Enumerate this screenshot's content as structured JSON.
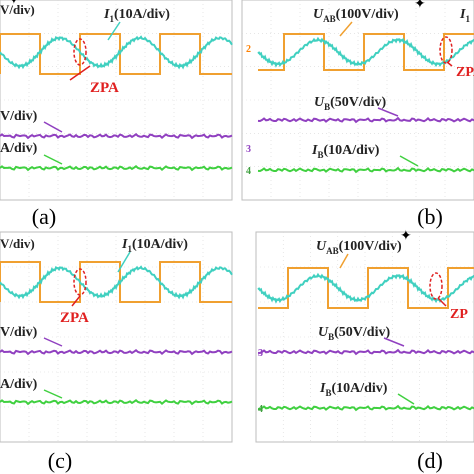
{
  "figure": {
    "panels": [
      {
        "caption": "(a)",
        "labels": {
          "top_left": "V/div)",
          "current": "I",
          "current_sub": "1",
          "current_scale": "(10A/div)",
          "zpa": "ZPA",
          "mid": "V/div)",
          "bottom": "A/div)"
        }
      },
      {
        "caption": "(b)",
        "labels": {
          "voltage": "U",
          "voltage_sub": "AB",
          "voltage_scale": "(100V/div)",
          "current": "I",
          "current_sub": "1",
          "zpa": "ZPA",
          "mid": "U",
          "mid_sub": "B",
          "mid_scale": "(50V/div)",
          "bottom": "I",
          "bottom_sub": "B",
          "bottom_scale": "(10A/div)"
        },
        "markers": [
          "2",
          "3",
          "4"
        ]
      },
      {
        "caption": "(c)",
        "labels": {
          "top_left": "V/div)",
          "current": "I",
          "current_sub": "1",
          "current_scale": "(10A/div)",
          "zpa": "ZPA",
          "mid": "V/div)",
          "bottom": "A/div)"
        }
      },
      {
        "caption": "(d)",
        "labels": {
          "voltage": "U",
          "voltage_sub": "AB",
          "voltage_scale": "(100V/div)",
          "zpa": "ZP",
          "mid": "U",
          "mid_sub": "B",
          "mid_scale": "(50V/div)",
          "bottom": "I",
          "bottom_sub": "B",
          "bottom_scale": "(10A/div)"
        },
        "markers": [
          "3",
          "4"
        ]
      }
    ],
    "colors": {
      "voltage_trace": "#f0a030",
      "current_trace": "#40d0c0",
      "mid_trace": "#9040c0",
      "bottom_trace": "#40d040",
      "zpa": "#e02020",
      "grid": "#d8d8d8",
      "label_text": "#222222"
    }
  }
}
